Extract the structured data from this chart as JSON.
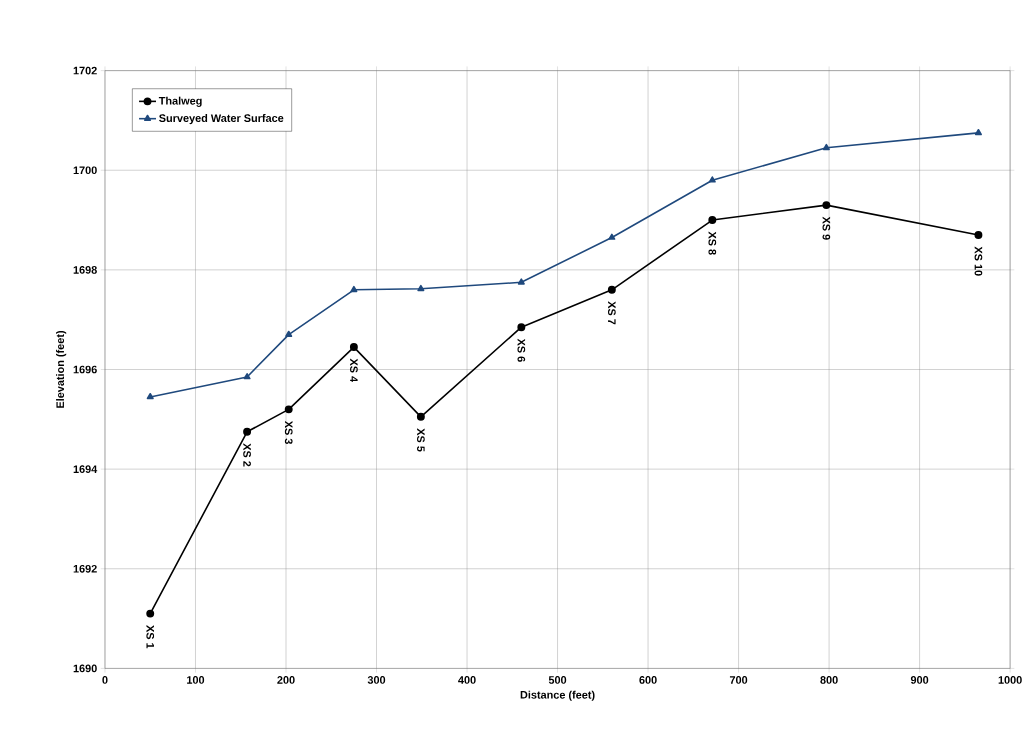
{
  "chart_data": {
    "type": "line",
    "xlabel": "Distance (feet)",
    "ylabel": "Elevation (feet)",
    "xlim": [
      0,
      1000
    ],
    "xticks": [
      0,
      100,
      200,
      300,
      400,
      500,
      600,
      700,
      800,
      900,
      1000
    ],
    "ylim": [
      1690,
      1702
    ],
    "yticks": [
      1690,
      1692,
      1694,
      1696,
      1698,
      1700,
      1702
    ],
    "grid": true,
    "legend": "top left",
    "line_style": "solid",
    "series": [
      {
        "name": "Thalweg",
        "color": "#000000",
        "marker": "circle",
        "x": [
          50,
          157,
          203,
          275,
          349,
          460,
          560,
          671,
          797,
          965
        ],
        "values": [
          1691.1,
          1694.75,
          1695.2,
          1696.45,
          1695.05,
          1696.85,
          1697.6,
          1699.0,
          1699.3,
          1698.7
        ]
      },
      {
        "name": "Surveyed Water Surface",
        "color": "#1f497d",
        "marker": "triangle",
        "x": [
          50,
          157,
          203,
          275,
          349,
          460,
          560,
          671,
          797,
          965
        ],
        "values": [
          1695.45,
          1695.85,
          1696.7,
          1697.6,
          1697.62,
          1697.75,
          1698.65,
          1699.8,
          1700.45,
          1700.75
        ]
      }
    ],
    "annotations": [
      {
        "text": "XS 1",
        "x": 50,
        "y": 1691.1
      },
      {
        "text": "XS 2",
        "x": 157,
        "y": 1694.75
      },
      {
        "text": "XS 3",
        "x": 203,
        "y": 1695.2
      },
      {
        "text": "XS 4",
        "x": 275,
        "y": 1696.45
      },
      {
        "text": "XS 5",
        "x": 349,
        "y": 1695.05
      },
      {
        "text": "XS 6",
        "x": 460,
        "y": 1696.85
      },
      {
        "text": "XS 7",
        "x": 560,
        "y": 1697.6
      },
      {
        "text": "XS 8",
        "x": 671,
        "y": 1699.0
      },
      {
        "text": "XS 9",
        "x": 797,
        "y": 1699.3
      },
      {
        "text": "XS 10",
        "x": 965,
        "y": 1698.7
      }
    ]
  }
}
